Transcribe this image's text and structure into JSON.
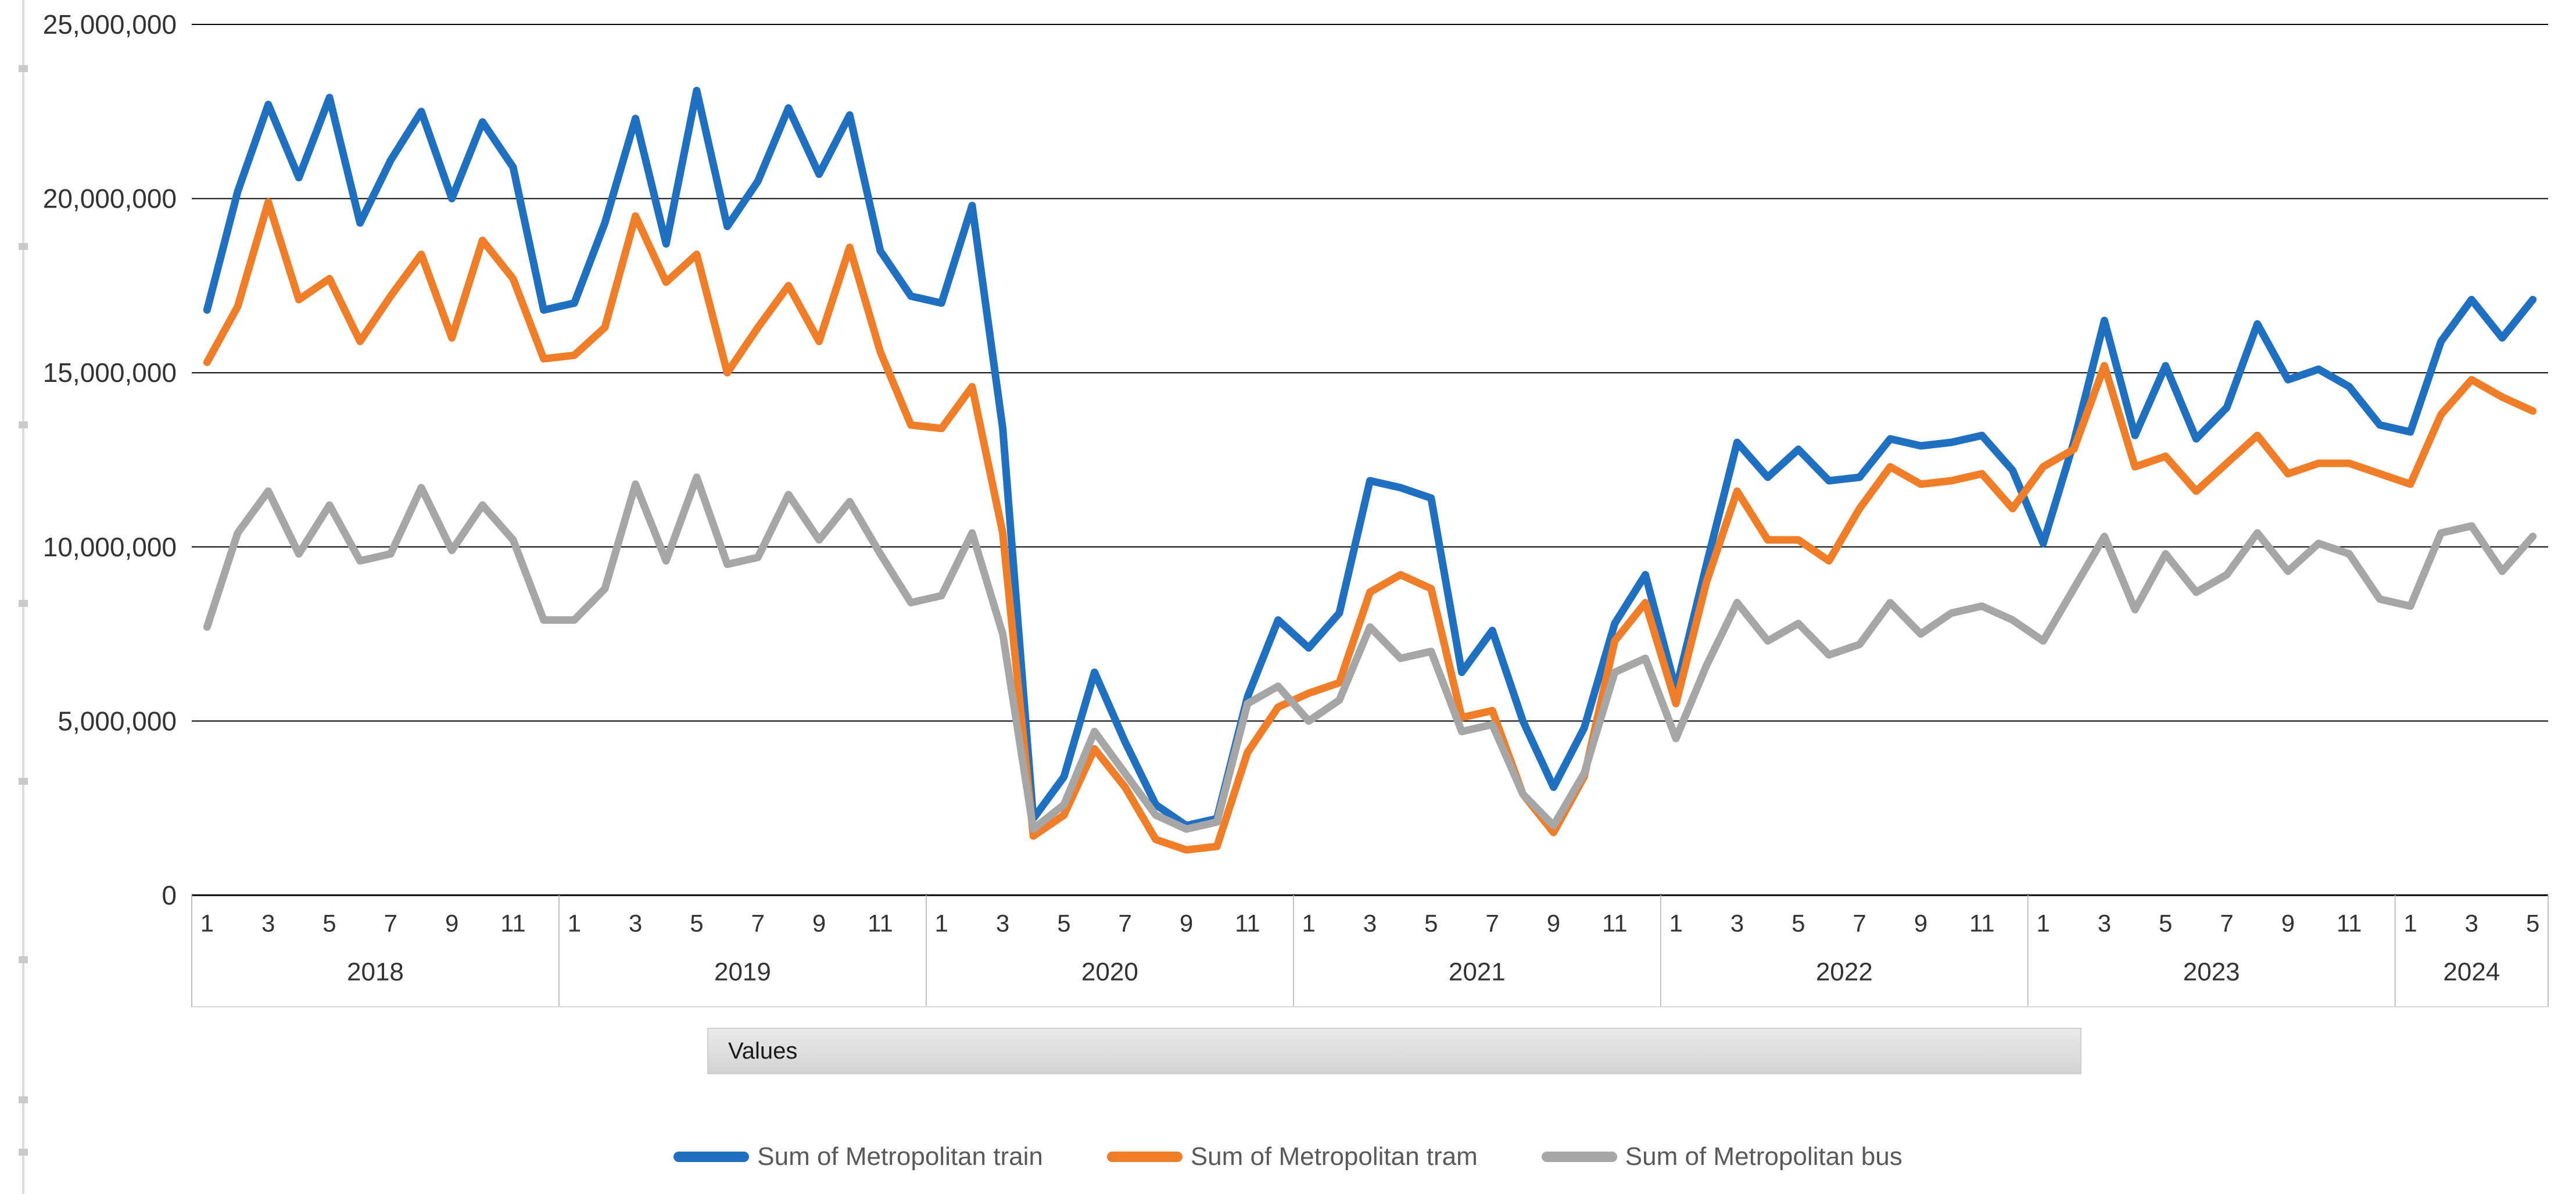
{
  "field_button": {
    "label": "Values"
  },
  "chart_data": {
    "type": "line",
    "title": "",
    "xlabel": "",
    "ylabel": "",
    "ylim": [
      0,
      25000000
    ],
    "grid": "horizontal",
    "legend_position": "bottom",
    "y_ticks": [
      "25,000,000",
      "20,000,000",
      "15,000,000",
      "10,000,000",
      "5,000,000",
      "0"
    ],
    "years": [
      {
        "label": "2018",
        "n_months": 12,
        "shown_month_ticks": [
          "1",
          "3",
          "5",
          "7",
          "9",
          "11"
        ]
      },
      {
        "label": "2019",
        "n_months": 12,
        "shown_month_ticks": [
          "1",
          "3",
          "5",
          "7",
          "9",
          "11"
        ]
      },
      {
        "label": "2020",
        "n_months": 12,
        "shown_month_ticks": [
          "1",
          "3",
          "5",
          "7",
          "9",
          "11"
        ]
      },
      {
        "label": "2021",
        "n_months": 12,
        "shown_month_ticks": [
          "1",
          "3",
          "5",
          "7",
          "9",
          "11"
        ]
      },
      {
        "label": "2022",
        "n_months": 12,
        "shown_month_ticks": [
          "1",
          "3",
          "5",
          "7",
          "9",
          "11"
        ]
      },
      {
        "label": "2023",
        "n_months": 12,
        "shown_month_ticks": [
          "1",
          "3",
          "5",
          "7",
          "9",
          "11"
        ]
      },
      {
        "label": "2024",
        "n_months": 5,
        "shown_month_ticks": [
          "1",
          "3",
          "5"
        ]
      }
    ],
    "series": [
      {
        "name": "Sum of Metropolitan train",
        "color": "#1f70c1",
        "values": [
          16800000,
          20200000,
          22700000,
          20600000,
          22900000,
          19300000,
          21100000,
          22500000,
          20000000,
          22200000,
          20900000,
          16800000,
          17000000,
          19300000,
          22300000,
          18700000,
          23100000,
          19200000,
          20500000,
          22600000,
          20700000,
          22400000,
          18500000,
          17200000,
          17000000,
          19800000,
          13400000,
          2200000,
          3400000,
          6400000,
          4400000,
          2600000,
          2000000,
          2200000,
          5700000,
          7900000,
          7100000,
          8100000,
          11900000,
          11700000,
          11400000,
          6400000,
          7600000,
          5000000,
          3100000,
          4800000,
          7800000,
          9200000,
          5900000,
          9500000,
          13000000,
          12000000,
          12800000,
          11900000,
          12000000,
          13100000,
          12900000,
          13000000,
          13200000,
          12200000,
          10100000,
          13000000,
          16500000,
          13200000,
          15200000,
          13100000,
          14000000,
          16400000,
          14800000,
          15100000,
          14600000,
          13500000,
          13300000,
          15900000,
          17100000,
          16000000,
          17100000
        ]
      },
      {
        "name": "Sum of Metropolitan tram",
        "color": "#f07d28",
        "values": [
          15300000,
          16900000,
          19900000,
          17100000,
          17700000,
          15900000,
          17200000,
          18400000,
          16000000,
          18800000,
          17700000,
          15400000,
          15500000,
          16300000,
          19500000,
          17600000,
          18400000,
          15000000,
          16300000,
          17500000,
          15900000,
          18600000,
          15600000,
          13500000,
          13400000,
          14600000,
          10400000,
          1700000,
          2300000,
          4200000,
          3100000,
          1600000,
          1300000,
          1400000,
          4100000,
          5400000,
          5800000,
          6100000,
          8700000,
          9200000,
          8800000,
          5100000,
          5300000,
          2900000,
          1800000,
          3400000,
          7300000,
          8400000,
          5500000,
          9000000,
          11600000,
          10200000,
          10200000,
          9600000,
          11100000,
          12300000,
          11800000,
          11900000,
          12100000,
          11100000,
          12300000,
          12800000,
          15200000,
          12300000,
          12600000,
          11600000,
          12400000,
          13200000,
          12100000,
          12400000,
          12400000,
          12100000,
          11800000,
          13800000,
          14800000,
          14300000,
          13900000
        ]
      },
      {
        "name": "Sum of Metropolitan bus",
        "color": "#a6a6a6",
        "values": [
          7700000,
          10400000,
          11600000,
          9800000,
          11200000,
          9600000,
          9800000,
          11700000,
          9900000,
          11200000,
          10200000,
          7900000,
          7900000,
          8800000,
          11800000,
          9600000,
          12000000,
          9500000,
          9700000,
          11500000,
          10200000,
          11300000,
          9800000,
          8400000,
          8600000,
          10400000,
          7500000,
          1900000,
          2600000,
          4700000,
          3500000,
          2300000,
          1900000,
          2100000,
          5500000,
          6000000,
          5000000,
          5600000,
          7700000,
          6800000,
          7000000,
          4700000,
          4900000,
          2900000,
          2000000,
          3500000,
          6400000,
          6800000,
          4500000,
          6600000,
          8400000,
          7300000,
          7800000,
          6900000,
          7200000,
          8400000,
          7500000,
          8100000,
          8300000,
          7900000,
          7300000,
          8800000,
          10300000,
          8200000,
          9800000,
          8700000,
          9200000,
          10400000,
          9300000,
          10100000,
          9800000,
          8500000,
          8300000,
          10400000,
          10600000,
          9300000,
          10300000
        ]
      }
    ]
  }
}
